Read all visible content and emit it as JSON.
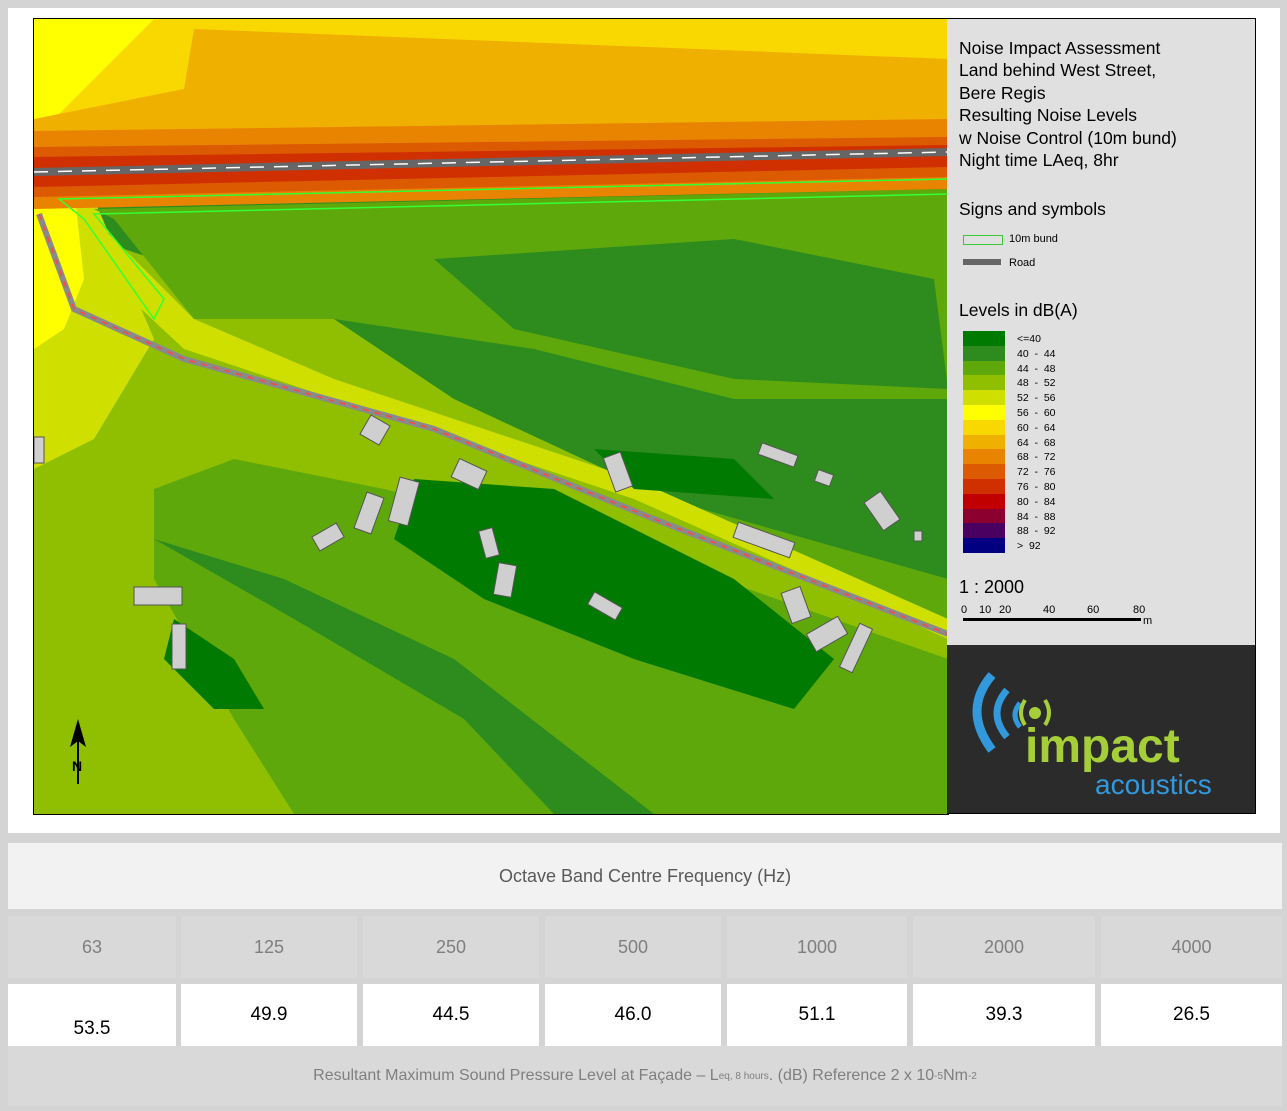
{
  "legend": {
    "title_lines": [
      "Noise Impact Assessment",
      "Land behind West Street,",
      "Bere Regis",
      "Resulting Noise Levels",
      "w Noise Control (10m bund)",
      "Night time LAeq, 8hr"
    ],
    "signs_title": "Signs and symbols",
    "symbols": [
      {
        "label": "10m bund",
        "color": "#33cc33"
      },
      {
        "label": "Road",
        "color": "#666666"
      }
    ],
    "levels_title": "Levels in dB(A)",
    "levels": [
      {
        "label": "<=40",
        "color": "#007a00"
      },
      {
        "label": "40  -  44",
        "color": "#2e8b1e"
      },
      {
        "label": "44  -  48",
        "color": "#5fa80c"
      },
      {
        "label": "48  -  52",
        "color": "#8fbf00"
      },
      {
        "label": "52  -  56",
        "color": "#cfe000"
      },
      {
        "label": "56  -  60",
        "color": "#ffff00"
      },
      {
        "label": "60  -  64",
        "color": "#f8d800"
      },
      {
        "label": "64  -  68",
        "color": "#f0b000"
      },
      {
        "label": "68  -  72",
        "color": "#e88400"
      },
      {
        "label": "72  -  76",
        "color": "#dc5a00"
      },
      {
        "label": "76  -  80",
        "color": "#d03000"
      },
      {
        "label": "80  -  84",
        "color": "#c00000"
      },
      {
        "label": "84  -  88",
        "color": "#8c0030"
      },
      {
        "label": "88  -  92",
        "color": "#4a0060"
      },
      {
        "label": ">  92",
        "color": "#000080"
      }
    ],
    "scale": "1 : 2000",
    "scale_ticks": [
      "0",
      "10",
      "20",
      "40",
      "60",
      "80"
    ],
    "scale_unit": "m",
    "north": "N"
  },
  "logo": {
    "brand_main": "impact",
    "brand_sub": "acoustics",
    "accent": "#3399dd",
    "green": "#a6ce39"
  },
  "table": {
    "header": "Octave Band Centre Frequency (Hz)",
    "frequencies": [
      "63",
      "125",
      "250",
      "500",
      "1000",
      "2000",
      "4000"
    ],
    "values": [
      "53.5",
      "49.9",
      "44.5",
      "46.0",
      "51.1",
      "39.3",
      "26.5"
    ],
    "footer_pre": "Resultant Maximum Sound Pressure Level at Façade – L",
    "footer_sub": "eq, 8 hours",
    "footer_mid": ". (dB) Reference 2 x 10",
    "footer_sup1": "-5",
    "footer_post": " Nm",
    "footer_sup2": "-2"
  }
}
